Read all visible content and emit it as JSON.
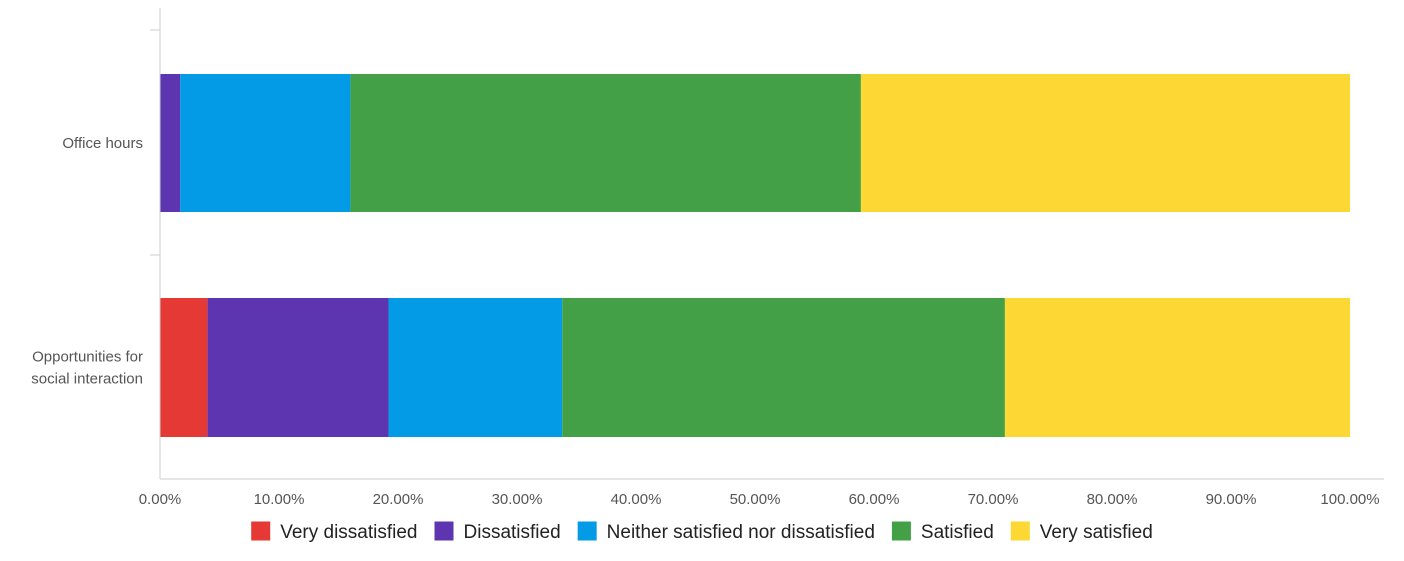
{
  "chart_data": {
    "type": "bar",
    "orientation": "horizontal",
    "stacked": true,
    "title": "",
    "xlabel": "",
    "ylabel": "",
    "xlim": [
      0,
      100
    ],
    "grid": false,
    "legend_position": "bottom",
    "categories": [
      [
        "Office hours"
      ],
      [
        "Opportunities for",
        "social interaction"
      ]
    ],
    "x_ticks": [
      "0.00%",
      "10.00%",
      "20.00%",
      "30.00%",
      "40.00%",
      "50.00%",
      "60.00%",
      "70.00%",
      "80.00%",
      "90.00%",
      "100.00%"
    ],
    "series": [
      {
        "name": "Very dissatisfied",
        "color": "#e53935",
        "values": [
          0.0,
          4.0
        ]
      },
      {
        "name": "Dissatisfied",
        "color": "#5e35b1",
        "values": [
          1.7,
          15.2
        ]
      },
      {
        "name": "Neither satisfied nor dissatisfied",
        "color": "#039be5",
        "values": [
          14.3,
          14.6
        ]
      },
      {
        "name": "Satisfied",
        "color": "#43a047",
        "values": [
          42.9,
          37.2
        ]
      },
      {
        "name": "Very satisfied",
        "color": "#fdd835",
        "values": [
          41.1,
          29.0
        ]
      }
    ]
  }
}
